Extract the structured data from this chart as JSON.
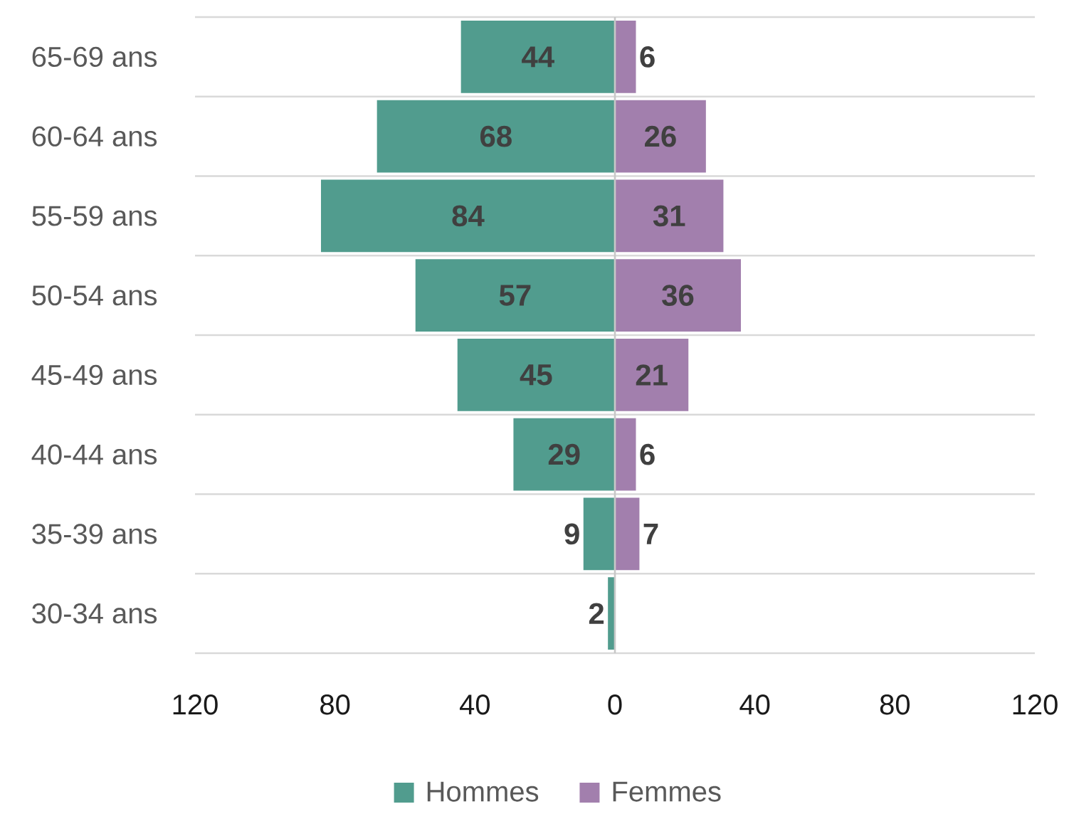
{
  "chart_data": [
    {
      "type": "bar",
      "orientation": "horizontal",
      "categories": [
        "65-69 ans",
        "60-64 ans",
        "55-59 ans",
        "50-54 ans",
        "45-49 ans",
        "40-44 ans",
        "35-39 ans",
        "30-34 ans"
      ],
      "series": [
        {
          "name": "Hommes",
          "color": "#519c8e",
          "values": [
            44,
            68,
            84,
            57,
            45,
            29,
            9,
            2
          ]
        }
      ],
      "xlim": [
        120,
        0
      ],
      "xticks": [
        120,
        80,
        40,
        0
      ],
      "data_labels": true,
      "grid": "y",
      "legend": "bottom"
    },
    {
      "type": "bar",
      "orientation": "horizontal",
      "categories": [
        null,
        null,
        null,
        null,
        null,
        null,
        null,
        null
      ],
      "series": [
        {
          "name": "Femmes",
          "color": "#a27fad",
          "values": [
            6,
            26,
            31,
            36,
            21,
            6,
            7,
            null
          ]
        }
      ],
      "xlim": [
        0,
        120
      ],
      "xticks": [
        40,
        80,
        120
      ],
      "data_labels": true,
      "grid": "y",
      "legend": "bottom"
    }
  ]
}
